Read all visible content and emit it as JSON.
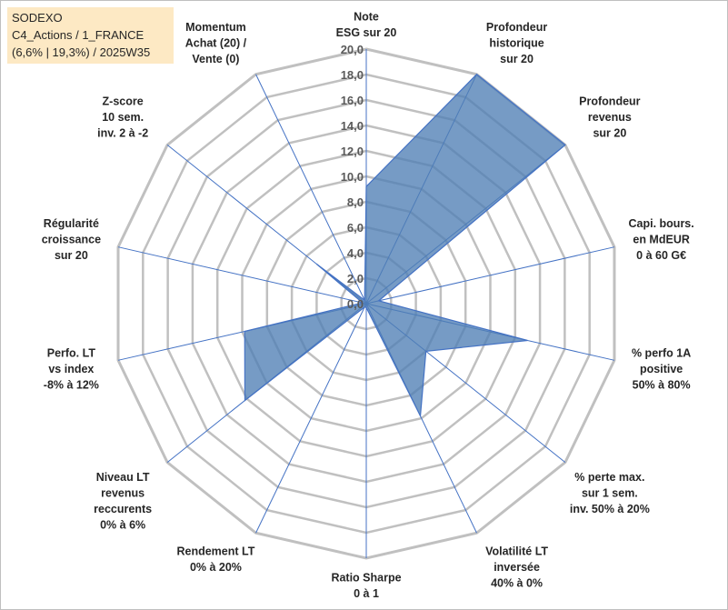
{
  "title": {
    "line1": "SODEXO",
    "line2": "C4_Actions / 1_FRANCE",
    "line3": "(6,6% | 19,3%) / 2025W35"
  },
  "chart_data": {
    "type": "radar",
    "rmin": 0,
    "rmax": 20,
    "tick_step": 2,
    "tick_labels": [
      "0,0",
      "2,0",
      "4,0",
      "6,0",
      "8,0",
      "10,0",
      "12,0",
      "14,0",
      "16,0",
      "18,0",
      "20,0"
    ],
    "grid": true,
    "colors": {
      "fill": "#4f7fb5",
      "stroke": "#4472c4",
      "grid": "#c0c0c0",
      "spoke": "#4472c4"
    },
    "axes": [
      {
        "label": [
          "Note",
          "ESG sur 20"
        ],
        "value": 9.2
      },
      {
        "label": [
          "Profondeur",
          "historique",
          "sur 20"
        ],
        "value": 20
      },
      {
        "label": [
          "Profondeur",
          "revenus",
          "sur 20"
        ],
        "value": 20
      },
      {
        "label": [
          "Capi. bours.",
          "en MdEUR",
          "0 à 60 G€"
        ],
        "value": 1.0
      },
      {
        "label": [
          "% perfo 1A",
          "positive",
          "50% à 80%"
        ],
        "value": 13
      },
      {
        "label": [
          "% perte max.",
          "sur 1 sem.",
          "inv. 50% à 20%"
        ],
        "value": 6.0
      },
      {
        "label": [
          "Volatilité LT",
          "inversée",
          "40% à 0%"
        ],
        "value": 9.8
      },
      {
        "label": [
          "Ratio Sharpe",
          "0 à 1"
        ],
        "value": 0.3
      },
      {
        "label": [
          "Rendement LT",
          "0% à 20%"
        ],
        "value": 0.3
      },
      {
        "label": [
          "Niveau LT",
          "revenus",
          "reccurents",
          "0% à 6%"
        ],
        "value": 12.2
      },
      {
        "label": [
          "Perfo. LT",
          "vs index",
          "-8% à 12%"
        ],
        "value": 9.8
      },
      {
        "label": [
          "Régularité",
          "croissance",
          "sur 20"
        ],
        "value": 0.3
      },
      {
        "label": [
          "Z-score",
          "10 sem.",
          "inv. 2 à -2"
        ],
        "value": 5.0
      },
      {
        "label": [
          "Momentum",
          "Achat (20) /",
          "Vente (0)"
        ],
        "value": 0.3
      }
    ]
  }
}
